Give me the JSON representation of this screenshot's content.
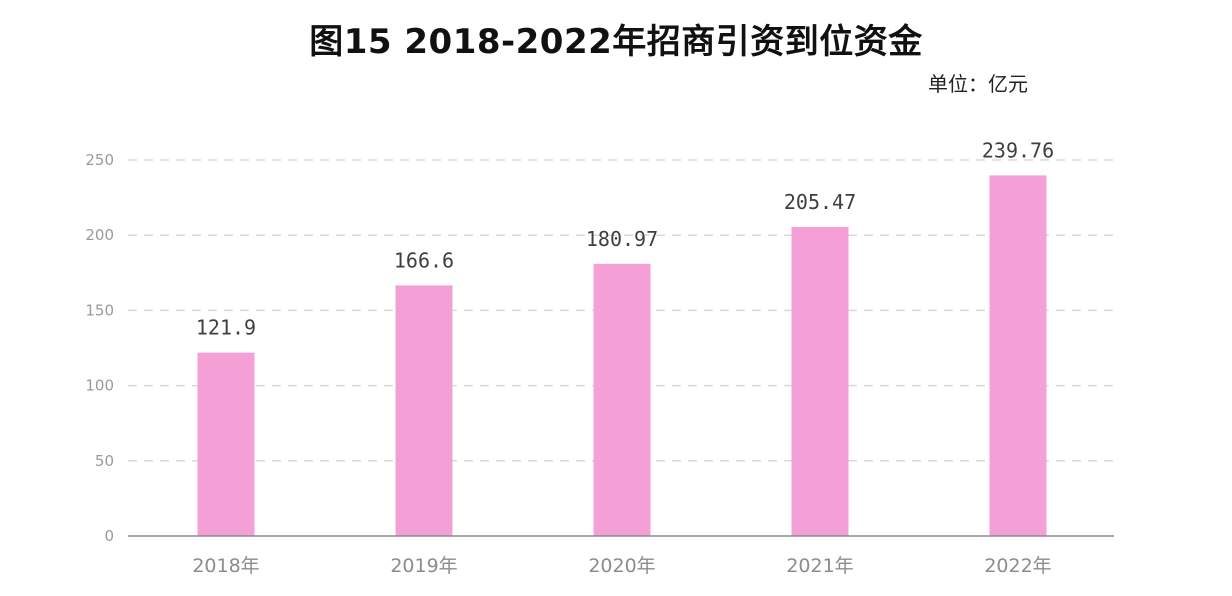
{
  "chart_data": {
    "type": "bar",
    "title": "图15  2018-2022年招商引资到位资金",
    "unit": "单位：亿元",
    "categories": [
      "2018年",
      "2019年",
      "2020年",
      "2021年",
      "2022年"
    ],
    "values": [
      121.9,
      166.6,
      180.97,
      205.47,
      239.76
    ],
    "value_labels": [
      "121.9",
      "166.6",
      "180.97",
      "205.47",
      "239.76"
    ],
    "yticks": [
      0,
      50,
      100,
      150,
      200,
      250
    ],
    "ylim": [
      0,
      250
    ],
    "grid": true,
    "legend": "none",
    "colors": {
      "bar": "#f49fd6"
    }
  }
}
